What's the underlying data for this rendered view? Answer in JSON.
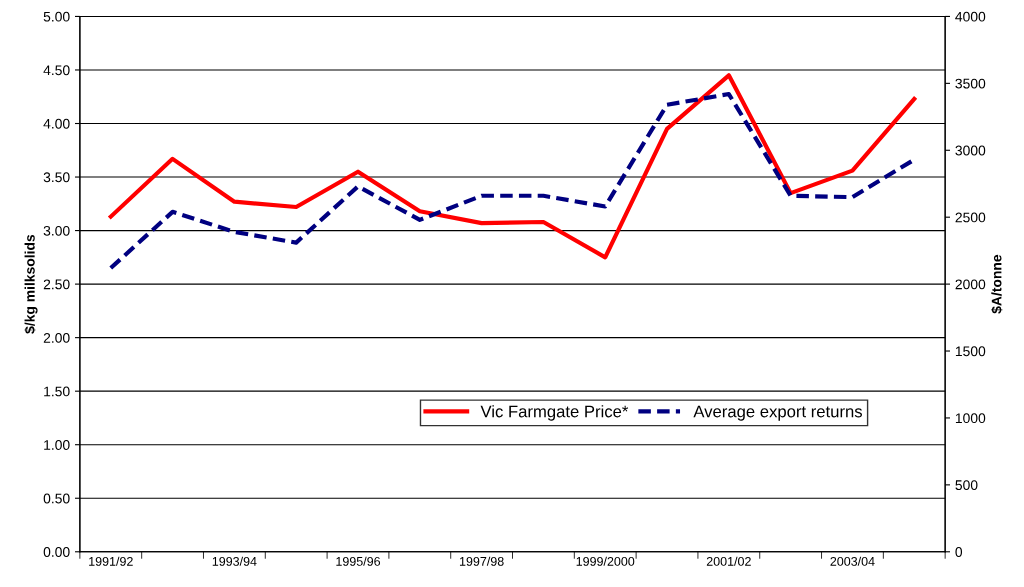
{
  "chart_data": {
    "type": "line",
    "ylabel": "$/kg milksolids",
    "y2label": "$A/tonne",
    "categories": [
      "1991/92",
      null,
      "1993/94",
      null,
      "1995/96",
      null,
      "1997/98",
      null,
      "1999/2000",
      null,
      "2001/02",
      null,
      "2003/04",
      null
    ],
    "series": [
      {
        "name": "Vic Farmgate Price*",
        "color": "#ff0000",
        "line_style": "solid",
        "values": [
          3.13,
          3.67,
          3.27,
          3.22,
          3.55,
          3.18,
          3.07,
          3.08,
          2.75,
          3.95,
          4.45,
          3.35,
          3.56,
          4.23
        ]
      },
      {
        "name": "Average export returns",
        "color": "#000080",
        "line_style": "dashed",
        "axis": "y2",
        "values": [
          2120,
          2540,
          2390,
          2310,
          2730,
          2480,
          2660,
          2660,
          2580,
          3340,
          3420,
          2660,
          2650,
          2930
        ]
      }
    ],
    "ylim": [
      0,
      5
    ],
    "yticks": [
      {
        "value": 0,
        "label": "0.00"
      },
      {
        "value": 0.5,
        "label": "0.50"
      },
      {
        "value": 1,
        "label": "1.00"
      },
      {
        "value": 1.5,
        "label": "1.50"
      },
      {
        "value": 2,
        "label": "2.00"
      },
      {
        "value": 2.5,
        "label": "2.50"
      },
      {
        "value": 3,
        "label": "3.00"
      },
      {
        "value": 3.5,
        "label": "3.50"
      },
      {
        "value": 4,
        "label": "4.00"
      },
      {
        "value": 4.5,
        "label": "4.50"
      },
      {
        "value": 5,
        "label": "5.00"
      }
    ],
    "y2lim": [
      0,
      4000
    ],
    "y2ticks": [
      0,
      500,
      1000,
      1500,
      2000,
      2500,
      3000,
      3500,
      4000
    ],
    "grid": "y",
    "legend": "bottom right",
    "marker": "none"
  }
}
